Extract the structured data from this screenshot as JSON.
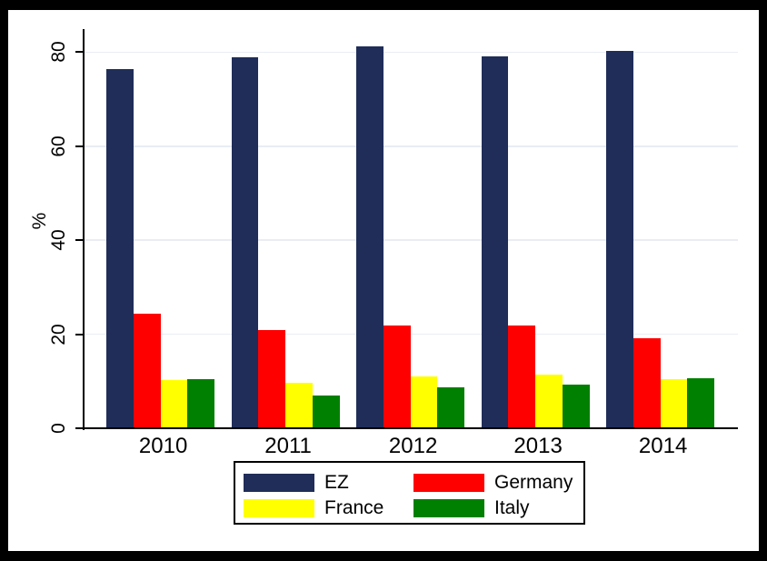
{
  "figure": {
    "background_color": "#ffffff",
    "frame_color": "#000000",
    "axis_color": "#000000",
    "text_color": "#000000"
  },
  "chart_data": {
    "type": "bar",
    "title": "",
    "xlabel": "",
    "ylabel": "%",
    "categories": [
      "2010",
      "2011",
      "2012",
      "2013",
      "2014"
    ],
    "series": [
      {
        "name": "EZ",
        "color": "#1F2D58",
        "values": [
          76.4,
          79.0,
          81.3,
          79.1,
          80.2
        ]
      },
      {
        "name": "Germany",
        "color": "#FF0000",
        "values": [
          24.4,
          20.9,
          21.9,
          21.8,
          19.2
        ]
      },
      {
        "name": "France",
        "color": "#FFFF00",
        "values": [
          10.3,
          9.7,
          11.0,
          11.5,
          10.5
        ]
      },
      {
        "name": "Italy",
        "color": "#008000",
        "values": [
          10.4,
          7.0,
          8.7,
          9.2,
          10.6
        ]
      }
    ],
    "ylim": [
      0,
      85
    ],
    "yticks": [
      0,
      20,
      40,
      60,
      80
    ],
    "grid": true,
    "gridline_color": "#E9EDF4",
    "legend_position": "bottom-center",
    "legend_border": true
  }
}
